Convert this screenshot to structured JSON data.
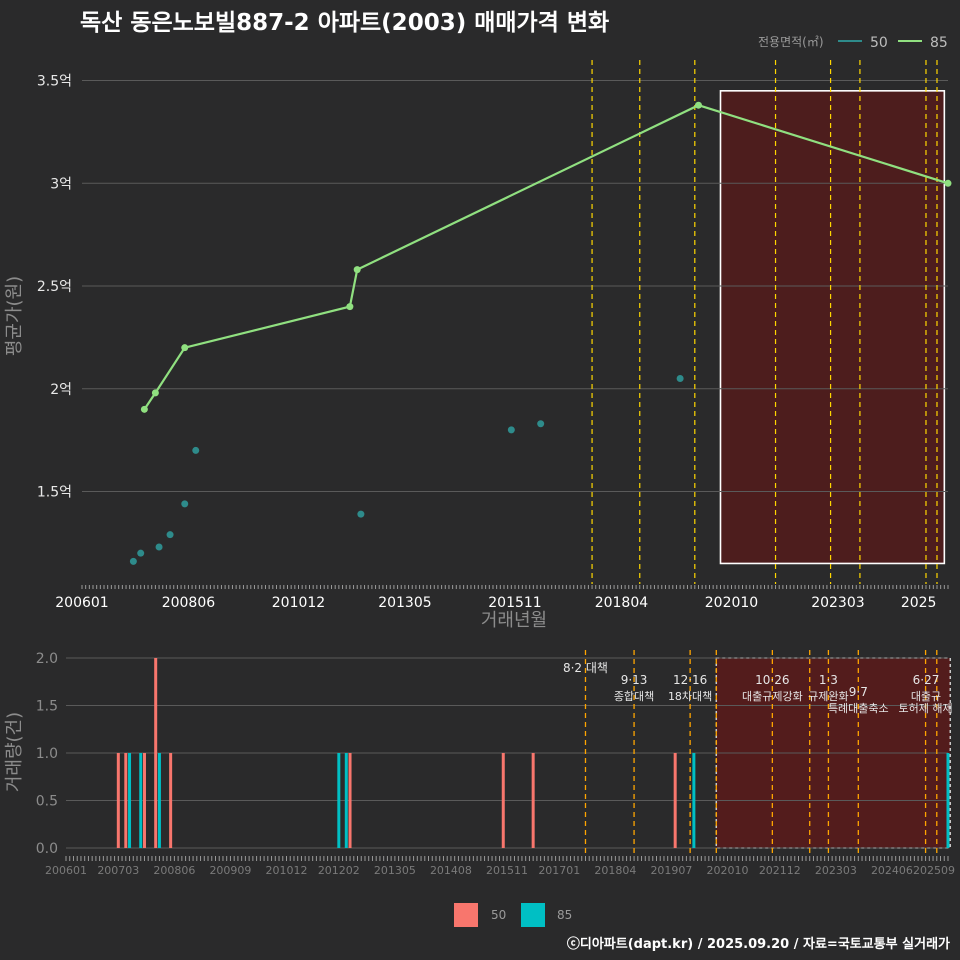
{
  "colors": {
    "background": "#2a2a2b",
    "grid": "#5a5a5a",
    "s50_line": "#2e8b8b",
    "s85_line": "#90e080",
    "bar50": "#f8766d",
    "bar85": "#00bfc4",
    "policy": "#ffd700",
    "policy_bottom": "#ffa500",
    "shade": "#5a1a1a"
  },
  "chart_data": [
    {
      "type": "line",
      "title": "독산 동은노보빌887-2 아파트(2003) 매매가격 변화",
      "xlabel": "거래년월",
      "ylabel": "평균가(원)",
      "ylim": [
        1.05,
        3.6
      ],
      "x_range": [
        "2006-01",
        "2025-09"
      ],
      "y_ticks": [
        {
          "v": 1.5,
          "label": "1.5억"
        },
        {
          "v": 2,
          "label": "2억"
        },
        {
          "v": 2.5,
          "label": "2.5억"
        },
        {
          "v": 3,
          "label": "3억"
        },
        {
          "v": 3.5,
          "label": "3.5억"
        }
      ],
      "x_ticks": [
        "200601",
        "200806",
        "201012",
        "201305",
        "201511",
        "201804",
        "202010",
        "202303",
        "2025"
      ],
      "legend_title": "전용면적(㎡)",
      "legend_position": "top-right",
      "series": [
        {
          "name": "50",
          "style": "points",
          "points": [
            {
              "x": "2007-03",
              "y": 1.16
            },
            {
              "x": "2007-05",
              "y": 1.2
            },
            {
              "x": "2007-10",
              "y": 1.23
            },
            {
              "x": "2008-01",
              "y": 1.29
            },
            {
              "x": "2008-05",
              "y": 1.44
            },
            {
              "x": "2008-08",
              "y": 1.7
            },
            {
              "x": "2012-05",
              "y": 1.39
            },
            {
              "x": "2015-10",
              "y": 1.8
            },
            {
              "x": "2016-06",
              "y": 1.83
            },
            {
              "x": "2019-08",
              "y": 2.05
            }
          ]
        },
        {
          "name": "85",
          "style": "line",
          "points": [
            {
              "x": "2007-06",
              "y": 1.9
            },
            {
              "x": "2007-09",
              "y": 1.98
            },
            {
              "x": "2008-05",
              "y": 2.2
            },
            {
              "x": "2012-02",
              "y": 2.4
            },
            {
              "x": "2012-04",
              "y": 2.58
            },
            {
              "x": "2020-01",
              "y": 3.38
            },
            {
              "x": "2025-09",
              "y": 3.0
            }
          ]
        }
      ],
      "policy_dates": [
        "2017-08",
        "2018-09",
        "2019-12",
        "2021-10",
        "2023-01",
        "2023-09",
        "2025-03",
        "2025-06"
      ],
      "highlight": {
        "from": "2020-07",
        "to": "2025-08"
      }
    },
    {
      "type": "bar",
      "xlabel": "",
      "ylabel": "거래량(건)",
      "ylim": [
        0,
        2
      ],
      "y_ticks": [
        {
          "v": 0,
          "label": "0.0"
        },
        {
          "v": 0.5,
          "label": "0.5"
        },
        {
          "v": 1,
          "label": "1.0"
        },
        {
          "v": 1.5,
          "label": "1.5"
        },
        {
          "v": 2,
          "label": "2.0"
        }
      ],
      "x_ticks": [
        "200601",
        "200703",
        "200806",
        "200909",
        "201012",
        "201202",
        "201305",
        "201408",
        "201511",
        "201701",
        "201804",
        "201907",
        "202010",
        "202112",
        "202303",
        "202406",
        "202509"
      ],
      "legend_position": "bottom",
      "series": [
        {
          "name": "50",
          "bars": [
            {
              "x": "2007-03",
              "v": 1
            },
            {
              "x": "2007-05",
              "v": 1
            },
            {
              "x": "2007-10",
              "v": 1
            },
            {
              "x": "2008-01",
              "v": 2
            },
            {
              "x": "2008-05",
              "v": 1
            },
            {
              "x": "2012-05",
              "v": 1
            },
            {
              "x": "2015-10",
              "v": 1
            },
            {
              "x": "2016-06",
              "v": 1
            },
            {
              "x": "2019-08",
              "v": 1
            }
          ]
        },
        {
          "name": "85",
          "bars": [
            {
              "x": "2007-06",
              "v": 1
            },
            {
              "x": "2007-09",
              "v": 1
            },
            {
              "x": "2008-02",
              "v": 1
            },
            {
              "x": "2012-02",
              "v": 1
            },
            {
              "x": "2012-04",
              "v": 1
            },
            {
              "x": "2020-01",
              "v": 1
            },
            {
              "x": "2025-09",
              "v": 1
            }
          ]
        }
      ],
      "policy_dates": [
        "2017-08",
        "2018-09",
        "2019-12",
        "2020-07",
        "2021-10",
        "2022-08",
        "2023-01",
        "2023-09",
        "2025-03",
        "2025-06"
      ],
      "highlight": {
        "from": "2020-07",
        "to": "2025-08"
      },
      "annotations": [
        {
          "x": "2017-08",
          "lines": [
            "8·2 대책"
          ],
          "y": 0
        },
        {
          "x": "2018-09",
          "lines": [
            "9·13",
            "종합대책"
          ],
          "y": 1
        },
        {
          "x": "2019-12",
          "lines": [
            "12·16",
            "18차대책"
          ],
          "y": 1
        },
        {
          "x": "2021-10",
          "lines": [
            "10·26",
            "대출규제강화"
          ],
          "y": 1
        },
        {
          "x": "2023-01",
          "lines": [
            "1·3",
            "규제완화"
          ],
          "y": 1
        },
        {
          "x": "2023-09",
          "lines": [
            "9·7",
            "특례대출축소"
          ],
          "y": 2
        },
        {
          "x": "2025-03",
          "lines": [
            "",
            "토허제 해제"
          ],
          "y": 2
        },
        {
          "x": "2025-06",
          "lines": [
            "6·27",
            "대출규"
          ],
          "y": 1
        }
      ]
    }
  ],
  "credit": "ⓒ디아파트(dapt.kr) / 2025.09.20 / 자료=국토교통부 실거래가"
}
